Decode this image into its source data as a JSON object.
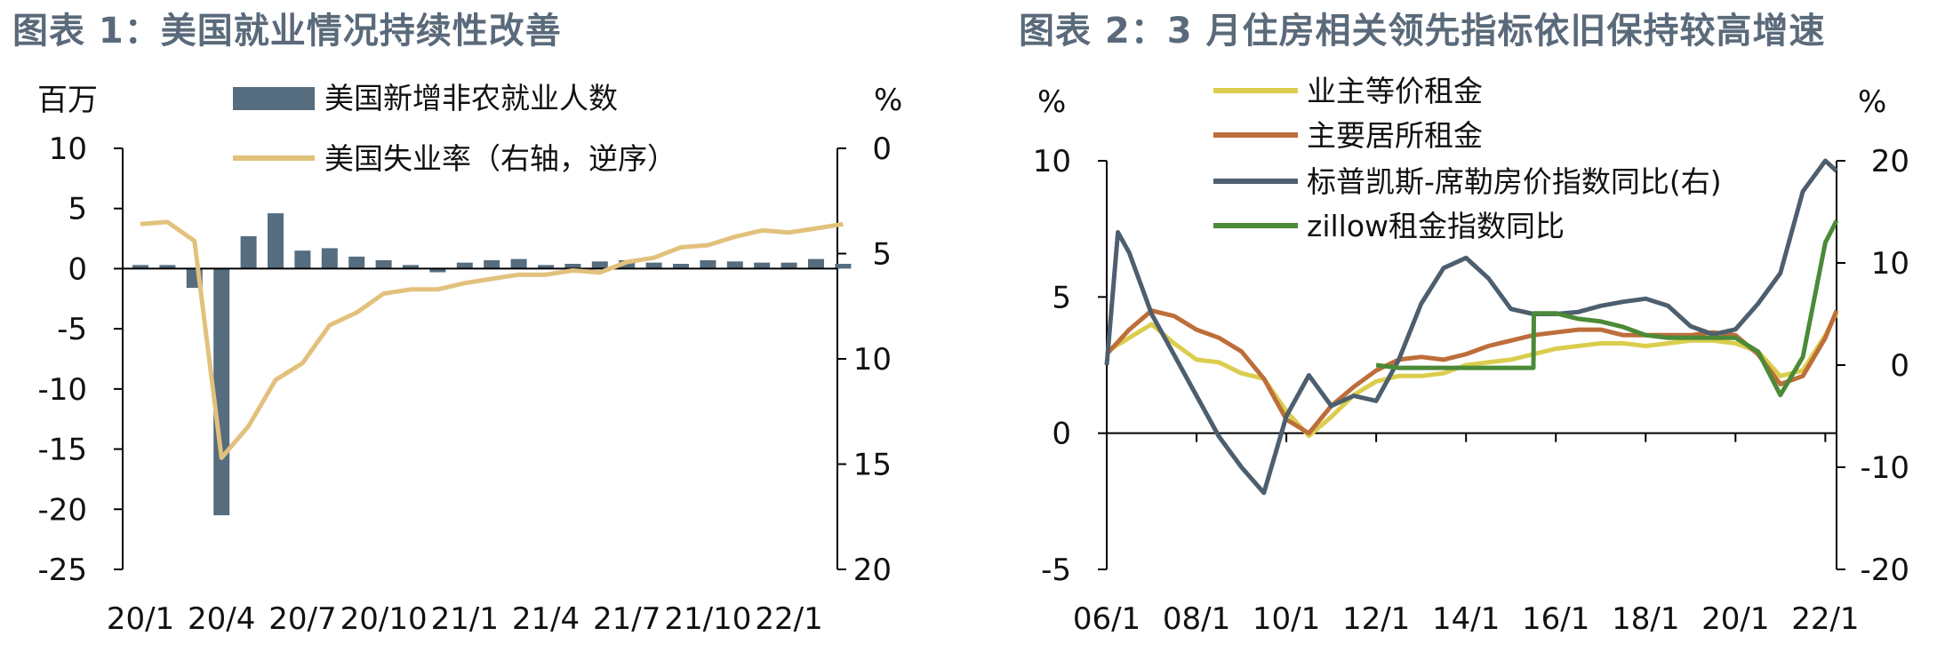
{
  "titles": [
    "图表 1：美国就业情况持续性改善",
    "图表 2：3 月住房相关领先指标依旧保持较高增速"
  ],
  "chart_data": [
    {
      "type": "bar",
      "title": "图表 1：美国就业情况持续性改善",
      "left_unit": "百万",
      "right_unit": "%",
      "ylim": [
        -25,
        10
      ],
      "y_ticks": [
        10,
        5,
        0,
        -5,
        -10,
        -15,
        -20,
        -25
      ],
      "y2lim": [
        0,
        20
      ],
      "y2_reversed": true,
      "y2_ticks": [
        0,
        5,
        10,
        15,
        20
      ],
      "x_tick_labels": [
        "20/1",
        "20/4",
        "20/7",
        "20/10",
        "21/1",
        "21/4",
        "21/7",
        "21/10",
        "22/1"
      ],
      "categories": [
        "20/1",
        "20/2",
        "20/3",
        "20/4",
        "20/5",
        "20/6",
        "20/7",
        "20/8",
        "20/9",
        "20/10",
        "20/11",
        "20/12",
        "21/1",
        "21/2",
        "21/3",
        "21/4",
        "21/5",
        "21/6",
        "21/7",
        "21/8",
        "21/9",
        "21/10",
        "21/11",
        "21/12",
        "22/1",
        "22/2",
        "22/3"
      ],
      "legend_position": "top",
      "series": [
        {
          "name": "美国新增非农就业人数",
          "kind": "bar",
          "axis": "left",
          "color": "#556d7e",
          "values": [
            0.3,
            0.3,
            -1.6,
            -20.5,
            2.7,
            4.6,
            1.5,
            1.7,
            1.0,
            0.7,
            0.3,
            -0.3,
            0.5,
            0.7,
            0.8,
            0.3,
            0.4,
            0.6,
            0.7,
            0.5,
            0.4,
            0.7,
            0.6,
            0.5,
            0.5,
            0.8,
            0.4
          ]
        },
        {
          "name": "美国失业率（右轴，逆序）",
          "kind": "line",
          "axis": "right",
          "color": "#e2c17d",
          "values": [
            3.6,
            3.5,
            4.4,
            14.7,
            13.2,
            11.0,
            10.2,
            8.4,
            7.8,
            6.9,
            6.7,
            6.7,
            6.4,
            6.2,
            6.0,
            6.0,
            5.8,
            5.9,
            5.4,
            5.2,
            4.7,
            4.6,
            4.2,
            3.9,
            4.0,
            3.8,
            3.6
          ]
        }
      ]
    },
    {
      "type": "line",
      "title": "图表 2：3 月住房相关领先指标依旧保持较高增速",
      "left_unit": "%",
      "right_unit": "%",
      "ylim": [
        -5,
        10
      ],
      "y_ticks": [
        10,
        5,
        0,
        -5
      ],
      "y2lim": [
        -20,
        20
      ],
      "y2_ticks": [
        20,
        10,
        0,
        -10,
        -20
      ],
      "x_range": [
        2006.0,
        2022.25
      ],
      "x_tick_labels": [
        "06/1",
        "08/1",
        "10/1",
        "12/1",
        "14/1",
        "16/1",
        "18/1",
        "20/1",
        "22/1"
      ],
      "legend_position": "top",
      "series": [
        {
          "name": "业主等价租金",
          "axis": "left",
          "color": "#dbcd4d",
          "x": [
            2006.0,
            2006.5,
            2007.0,
            2007.5,
            2008.0,
            2008.5,
            2009.0,
            2009.5,
            2010.0,
            2010.5,
            2011.0,
            2011.5,
            2012.0,
            2012.5,
            2013.0,
            2013.5,
            2014.0,
            2014.5,
            2015.0,
            2015.5,
            2016.0,
            2016.5,
            2017.0,
            2017.5,
            2018.0,
            2018.5,
            2019.0,
            2019.5,
            2020.0,
            2020.5,
            2021.0,
            2021.5,
            2022.0,
            2022.25
          ],
          "y": [
            3.0,
            3.5,
            4.0,
            3.3,
            2.7,
            2.6,
            2.2,
            2.0,
            0.8,
            -0.1,
            0.6,
            1.4,
            1.9,
            2.1,
            2.1,
            2.2,
            2.5,
            2.6,
            2.7,
            2.9,
            3.1,
            3.2,
            3.3,
            3.3,
            3.2,
            3.3,
            3.4,
            3.4,
            3.3,
            3.0,
            2.1,
            2.3,
            3.6,
            4.4
          ]
        },
        {
          "name": "主要居所租金",
          "axis": "left",
          "color": "#bd6e3a",
          "x": [
            2006.0,
            2006.5,
            2007.0,
            2007.5,
            2008.0,
            2008.5,
            2009.0,
            2009.5,
            2010.0,
            2010.5,
            2011.0,
            2011.5,
            2012.0,
            2012.5,
            2013.0,
            2013.5,
            2014.0,
            2014.5,
            2015.0,
            2015.5,
            2016.0,
            2016.5,
            2017.0,
            2017.5,
            2018.0,
            2018.5,
            2019.0,
            2019.5,
            2020.0,
            2020.5,
            2021.0,
            2021.5,
            2022.0,
            2022.25
          ],
          "y": [
            2.9,
            3.8,
            4.5,
            4.3,
            3.8,
            3.5,
            3.0,
            2.0,
            0.5,
            0.0,
            1.0,
            1.7,
            2.3,
            2.7,
            2.8,
            2.7,
            2.9,
            3.2,
            3.4,
            3.6,
            3.7,
            3.8,
            3.8,
            3.6,
            3.6,
            3.6,
            3.6,
            3.7,
            3.6,
            2.9,
            1.8,
            2.1,
            3.5,
            4.5
          ]
        },
        {
          "name": "标普凯斯-席勒房价指数同比(右)",
          "axis": "right",
          "color": "#4d5f6e",
          "x": [
            2006.0,
            2006.25,
            2006.5,
            2007.0,
            2007.5,
            2008.0,
            2008.5,
            2009.0,
            2009.5,
            2010.0,
            2010.5,
            2011.0,
            2011.5,
            2012.0,
            2012.5,
            2013.0,
            2013.5,
            2014.0,
            2014.5,
            2015.0,
            2015.5,
            2016.0,
            2016.5,
            2017.0,
            2017.5,
            2018.0,
            2018.5,
            2019.0,
            2019.5,
            2020.0,
            2020.5,
            2021.0,
            2021.5,
            2022.0,
            2022.25
          ],
          "y": [
            0.0,
            13.0,
            11.0,
            5.0,
            1.0,
            -3.0,
            -7.0,
            -10.0,
            -12.5,
            -5.0,
            -1.0,
            -4.0,
            -3.0,
            -3.5,
            0.5,
            6.0,
            9.5,
            10.5,
            8.5,
            5.5,
            5.0,
            5.0,
            5.2,
            5.8,
            6.2,
            6.5,
            5.8,
            3.8,
            3.0,
            3.5,
            6.0,
            9.0,
            17.0,
            20.0,
            19.0
          ]
        },
        {
          "name": "zillow租金指数同比",
          "axis": "left",
          "color": "#4b8a37",
          "x": [
            2012.0,
            2012.5,
            2013.0,
            2013.5,
            2014.0,
            2014.5,
            2015.0,
            2015.5,
            2015.51,
            2016.0,
            2016.5,
            2017.0,
            2017.5,
            2018.0,
            2018.5,
            2019.0,
            2019.5,
            2020.0,
            2020.5,
            2021.0,
            2021.5,
            2022.0,
            2022.25
          ],
          "y": [
            2.5,
            2.4,
            2.4,
            2.4,
            2.4,
            2.4,
            2.4,
            2.4,
            4.4,
            4.4,
            4.2,
            4.1,
            3.9,
            3.6,
            3.5,
            3.5,
            3.5,
            3.5,
            3.0,
            1.4,
            2.8,
            7.0,
            7.8
          ]
        }
      ]
    }
  ]
}
